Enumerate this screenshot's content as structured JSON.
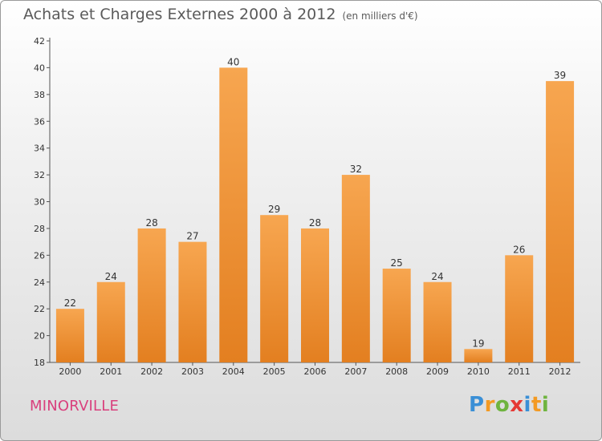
{
  "header": {
    "title": "Achats et Charges Externes 2000 à 2012",
    "unit": "(en milliers d'€)"
  },
  "footer": {
    "commune": "MINORVILLE",
    "logo": {
      "p": "P",
      "r": "r",
      "o": "o",
      "x": "x",
      "i1": "i",
      "t": "t",
      "i2": "i"
    }
  },
  "colors": {
    "bar_light": "#f7a650",
    "bar_dark": "#e37f20",
    "commune": "#d9407d"
  },
  "chart_data": {
    "type": "bar",
    "title": "Achats et Charges Externes 2000 à 2012",
    "subtitle": "(en milliers d'€)",
    "categories": [
      "2000",
      "2001",
      "2002",
      "2003",
      "2004",
      "2005",
      "2006",
      "2007",
      "2008",
      "2009",
      "2010",
      "2011",
      "2012"
    ],
    "values": [
      22,
      24,
      28,
      27,
      40,
      29,
      28,
      32,
      25,
      24,
      19,
      26,
      39
    ],
    "ylim": [
      18,
      42
    ],
    "yticks": [
      18,
      20,
      22,
      24,
      26,
      28,
      30,
      32,
      34,
      36,
      38,
      40,
      42
    ],
    "grid": false,
    "legend": "none"
  }
}
